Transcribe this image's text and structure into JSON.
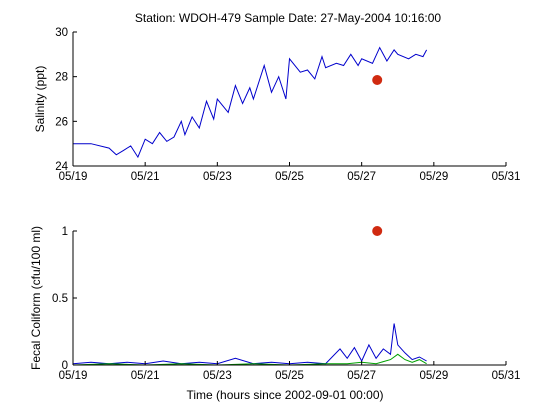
{
  "title": "Station: WDOH-479  Sample Date: 27-May-2004 10:16:00",
  "chart_data": [
    {
      "type": "line",
      "ylabel": "Salinity (ppt)",
      "xlabel": "",
      "xlim": [
        0,
        12
      ],
      "ylim": [
        24,
        30
      ],
      "xticks": [
        0,
        2,
        4,
        6,
        8,
        10,
        12
      ],
      "xtick_labels": [
        "05/19",
        "05/21",
        "05/23",
        "05/25",
        "05/27",
        "05/29",
        "05/31"
      ],
      "yticks": [
        24,
        26,
        28,
        30
      ],
      "ytick_labels": [
        "24",
        "26",
        "28",
        "30"
      ],
      "series": [
        {
          "color": "#0000cc",
          "x": [
            0.0,
            0.5,
            1.0,
            1.2,
            1.4,
            1.6,
            1.8,
            2.0,
            2.2,
            2.4,
            2.6,
            2.8,
            3.0,
            3.1,
            3.3,
            3.5,
            3.7,
            3.9,
            4.0,
            4.3,
            4.5,
            4.7,
            4.9,
            5.0,
            5.3,
            5.5,
            5.7,
            5.9,
            6.0,
            6.3,
            6.5,
            6.7,
            6.9,
            7.0,
            7.3,
            7.5,
            7.7,
            7.9,
            8.0,
            8.3,
            8.5,
            8.7,
            8.9,
            9.0,
            9.3,
            9.5,
            9.7,
            9.8
          ],
          "y": [
            25.0,
            25.0,
            24.8,
            24.5,
            24.7,
            24.9,
            24.4,
            25.2,
            25.0,
            25.5,
            25.1,
            25.3,
            26.0,
            25.4,
            26.2,
            25.7,
            26.9,
            26.1,
            27.0,
            26.4,
            27.6,
            26.8,
            27.5,
            27.0,
            28.5,
            27.3,
            28.0,
            27.0,
            28.8,
            28.2,
            28.3,
            27.9,
            28.9,
            28.4,
            28.6,
            28.5,
            29.0,
            28.5,
            28.8,
            28.6,
            29.3,
            28.7,
            29.2,
            29.0,
            28.8,
            29.0,
            28.9,
            29.2
          ]
        }
      ],
      "markers": [
        {
          "x": 8.43,
          "y": 27.85,
          "color": "#d02a10"
        }
      ]
    },
    {
      "type": "line",
      "ylabel": "Fecal Coliform (cfu/100 ml)",
      "xlabel": "Time (hours since 2002-09-01 00:00)",
      "xlim": [
        0,
        12
      ],
      "ylim": [
        0,
        1
      ],
      "xticks": [
        0,
        2,
        4,
        6,
        8,
        10,
        12
      ],
      "xtick_labels": [
        "05/19",
        "05/21",
        "05/23",
        "05/25",
        "05/27",
        "05/29",
        "05/31"
      ],
      "yticks": [
        0,
        0.5,
        1
      ],
      "ytick_labels": [
        "0",
        "0.5",
        "1"
      ],
      "series": [
        {
          "color": "#0000cc",
          "x": [
            0.0,
            0.5,
            1.0,
            1.5,
            2.0,
            2.5,
            3.0,
            3.5,
            4.0,
            4.5,
            5.0,
            5.5,
            6.0,
            6.5,
            7.0,
            7.4,
            7.6,
            7.8,
            8.0,
            8.2,
            8.4,
            8.6,
            8.8,
            8.9,
            9.0,
            9.2,
            9.4,
            9.6,
            9.8
          ],
          "y": [
            0.01,
            0.02,
            0.01,
            0.02,
            0.01,
            0.03,
            0.01,
            0.02,
            0.01,
            0.05,
            0.01,
            0.02,
            0.01,
            0.02,
            0.01,
            0.12,
            0.05,
            0.13,
            0.03,
            0.15,
            0.05,
            0.12,
            0.08,
            0.31,
            0.15,
            0.09,
            0.04,
            0.06,
            0.03
          ]
        },
        {
          "color": "#00a000",
          "x": [
            0.0,
            1.0,
            2.0,
            3.0,
            4.0,
            5.0,
            6.0,
            7.0,
            7.6,
            8.0,
            8.4,
            8.8,
            9.0,
            9.2,
            9.4,
            9.6,
            9.8
          ],
          "y": [
            0.0,
            0.01,
            0.0,
            0.01,
            0.0,
            0.01,
            0.0,
            0.01,
            0.01,
            0.02,
            0.01,
            0.04,
            0.08,
            0.04,
            0.02,
            0.04,
            0.01
          ]
        },
        {
          "color": "#cc3300",
          "x": [
            0.0,
            12.0
          ],
          "y": [
            0.0,
            0.0
          ]
        }
      ],
      "markers": [
        {
          "x": 8.43,
          "y": 1.0,
          "color": "#d02a10"
        }
      ]
    }
  ]
}
